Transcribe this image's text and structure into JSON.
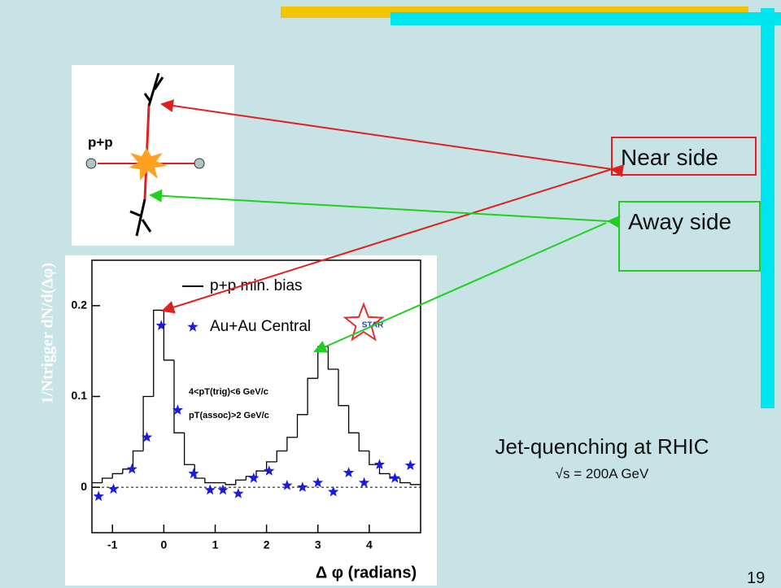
{
  "slide": {
    "near_label": "Near side",
    "away_label": "Away side",
    "title": "Jet-quenching at RHIC",
    "subtitle": "√s = 200A GeV",
    "page_number": "19",
    "diagram_label": "p+p"
  },
  "chart_data": {
    "type": "histogram",
    "x_label": "Δ φ (radians)",
    "y_label": "1/Ntrigger dN/d(Δφ)",
    "annotations": [
      "4<pT(trig)<6 GeV/c",
      "pT(assoc)>2 GeV/c",
      "STAR"
    ],
    "bins": [
      -1.4,
      -1.2,
      -1.0,
      -0.8,
      -0.6,
      -0.4,
      -0.2,
      0.0,
      0.2,
      0.4,
      0.6,
      0.8,
      1.0,
      1.2,
      1.4,
      1.6,
      1.8,
      2.0,
      2.2,
      2.4,
      2.6,
      2.8,
      3.0,
      3.2,
      3.4,
      3.6,
      3.8,
      4.0,
      4.2,
      4.4,
      4.6,
      4.8,
      5.0
    ],
    "series": [
      {
        "name": "p+p min. bias",
        "color": "#000000",
        "values": [
          0.005,
          0.01,
          0.015,
          0.02,
          0.04,
          0.1,
          0.195,
          0.14,
          0.06,
          0.025,
          0.01,
          0.005,
          0.005,
          0.003,
          0.008,
          0.012,
          0.018,
          0.028,
          0.04,
          0.055,
          0.08,
          0.12,
          0.155,
          0.13,
          0.09,
          0.06,
          0.04,
          0.025,
          0.015,
          0.01,
          0.005,
          0.003
        ]
      },
      {
        "name": "Au+Au Central",
        "color": "#1a1ae0",
        "marker": "star",
        "x": [
          -1.27,
          -0.98,
          -0.62,
          -0.33,
          -0.05,
          0.27,
          0.58,
          0.9,
          1.15,
          1.45,
          1.75,
          2.05,
          2.4,
          2.7,
          3.0,
          3.3,
          3.6,
          3.9,
          4.2,
          4.5,
          4.8
        ],
        "values": [
          -0.01,
          -0.002,
          0.02,
          0.055,
          0.178,
          0.085,
          0.015,
          -0.003,
          -0.003,
          -0.007,
          0.01,
          0.018,
          0.002,
          0.0,
          0.005,
          -0.005,
          0.016,
          0.005,
          0.025,
          0.01,
          0.024
        ]
      }
    ],
    "xlim": [
      -1.4,
      5.0
    ],
    "ylim": [
      -0.05,
      0.25
    ],
    "xticks": [
      -1,
      0,
      1,
      2,
      3,
      4
    ],
    "yticks": [
      0,
      0.1,
      0.2
    ]
  }
}
